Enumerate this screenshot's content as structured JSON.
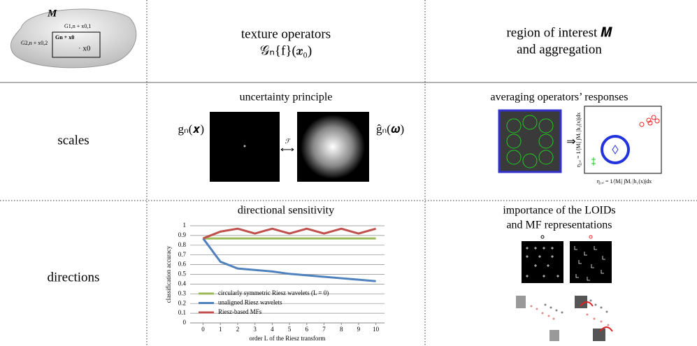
{
  "header": {
    "diagram": {
      "region": "M",
      "labels": [
        "G1,n + x0,1",
        "G2,n + x0,2",
        "Gn + x0",
        "· x0"
      ]
    },
    "operators": {
      "title": "texture operators",
      "formula": "𝒢ₙ{f}(𝒙₀)"
    },
    "region": {
      "lines": [
        "region of interest 𝑴",
        "and aggregation"
      ]
    }
  },
  "rows": [
    {
      "label": "scales",
      "left": {
        "title": "uncertainty principle",
        "space_label": "gₙ(𝒙)",
        "freq_label": "ĝₙ(𝝎)",
        "transform": "ℱ"
      },
      "right": {
        "title": "averaging operators’ responses",
        "arrow": "⇒",
        "ylabel": "η₂,ᵢ = 1/|Mᵢ| ∫Mᵢ |h₂(x)|dx",
        "xlabel": "η₁,ᵢ = 1/|Mᵢ| ∫Mᵢ |h₁(x)|dx"
      }
    },
    {
      "label": "directions",
      "left": {
        "title": "directional sensitivity"
      },
      "right": {
        "title_lines": [
          "importance of the LOIDs",
          "and MF representations"
        ]
      }
    }
  ],
  "chart_data": {
    "type": "line",
    "xlabel": "order L of the Riesz transform",
    "ylabel": "classification accuracy",
    "x": [
      0,
      1,
      2,
      3,
      4,
      5,
      6,
      7,
      8,
      9,
      10
    ],
    "xlim": [
      -0.75,
      10.5
    ],
    "xticks": [
      0,
      1,
      2,
      3,
      4,
      5,
      6,
      7,
      8,
      9,
      10
    ],
    "ylim": [
      0,
      1
    ],
    "yticks": [
      0,
      0.1,
      0.2,
      0.3,
      0.4,
      0.5,
      0.6,
      0.7,
      0.8,
      0.9,
      1
    ],
    "grid": true,
    "legend": "lower left",
    "series": [
      {
        "name": "circularly symmetric Riesz wavelets (L = 0)",
        "color": "#9bbb59",
        "values": [
          0.87,
          0.87,
          0.87,
          0.87,
          0.87,
          0.87,
          0.87,
          0.87,
          0.87,
          0.87,
          0.87
        ]
      },
      {
        "name": "unaligned Riesz wavelets",
        "color": "#4f81bd",
        "values": [
          0.87,
          0.63,
          0.56,
          0.545,
          0.53,
          0.505,
          0.49,
          0.475,
          0.46,
          0.445,
          0.43
        ]
      },
      {
        "name": "Riesz-based MFs",
        "color": "#c0504d",
        "values": [
          0.87,
          0.94,
          0.97,
          0.92,
          0.97,
          0.92,
          0.97,
          0.92,
          0.97,
          0.92,
          0.97
        ]
      }
    ]
  }
}
